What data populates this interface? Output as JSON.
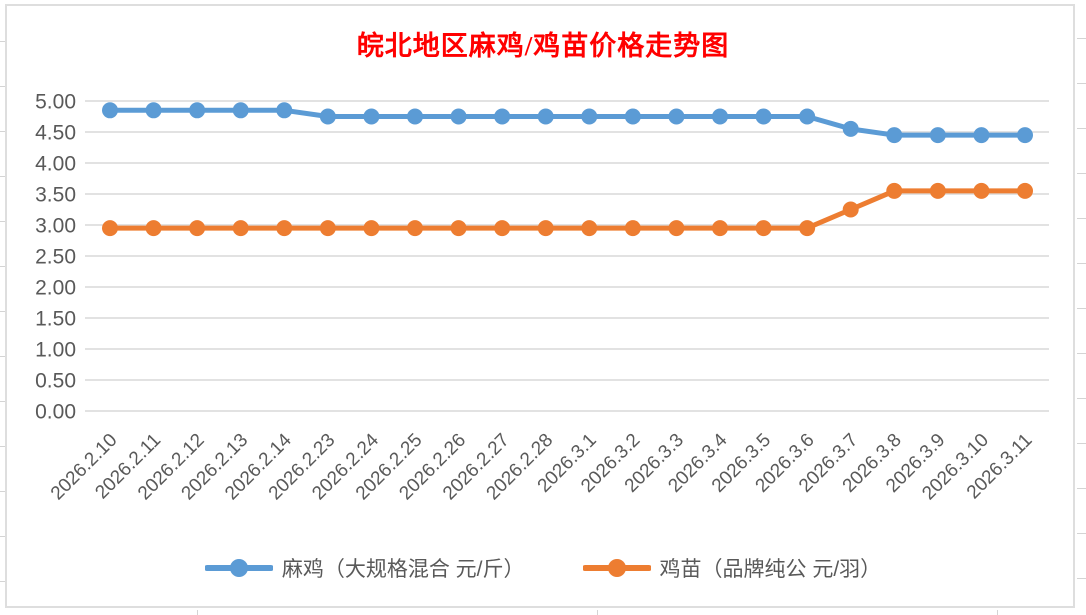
{
  "chart_data": {
    "type": "line",
    "title": "皖北地区麻鸡/鸡苗价格走势图",
    "title_color": "#FF0000",
    "categories": [
      "2026.2.10",
      "2026.2.11",
      "2026.2.12",
      "2026.2.13",
      "2026.2.14",
      "2026.2.23",
      "2026.2.24",
      "2026.2.25",
      "2026.2.26",
      "2026.2.27",
      "2026.2.28",
      "2026.3.1",
      "2026.3.2",
      "2026.3.3",
      "2026.3.4",
      "2026.3.5",
      "2026.3.6",
      "2026.3.7",
      "2026.3.8",
      "2026.3.9",
      "2026.3.10",
      "2026.3.11"
    ],
    "series": [
      {
        "name": "麻鸡（大规格混合 元/斤）",
        "color": "#5B9BD5",
        "values": [
          4.85,
          4.85,
          4.85,
          4.85,
          4.85,
          4.75,
          4.75,
          4.75,
          4.75,
          4.75,
          4.75,
          4.75,
          4.75,
          4.75,
          4.75,
          4.75,
          4.75,
          4.55,
          4.45,
          4.45,
          4.45,
          4.45
        ]
      },
      {
        "name": "鸡苗（品牌纯公 元/羽）",
        "color": "#ED7D31",
        "values": [
          2.95,
          2.95,
          2.95,
          2.95,
          2.95,
          2.95,
          2.95,
          2.95,
          2.95,
          2.95,
          2.95,
          2.95,
          2.95,
          2.95,
          2.95,
          2.95,
          2.95,
          3.25,
          3.55,
          3.55,
          3.55,
          3.55
        ]
      }
    ],
    "xlabel": "",
    "ylabel": "",
    "ylim": [
      0,
      5
    ],
    "y_step": 0.5,
    "y_tick_labels": [
      "0.00",
      "0.50",
      "1.00",
      "1.50",
      "2.00",
      "2.50",
      "3.00",
      "3.50",
      "4.00",
      "4.50",
      "5.00"
    ],
    "grid": true,
    "legend_position": "bottom",
    "axis_text_color": "#595959",
    "gridline_color": "#D9D9D9"
  }
}
